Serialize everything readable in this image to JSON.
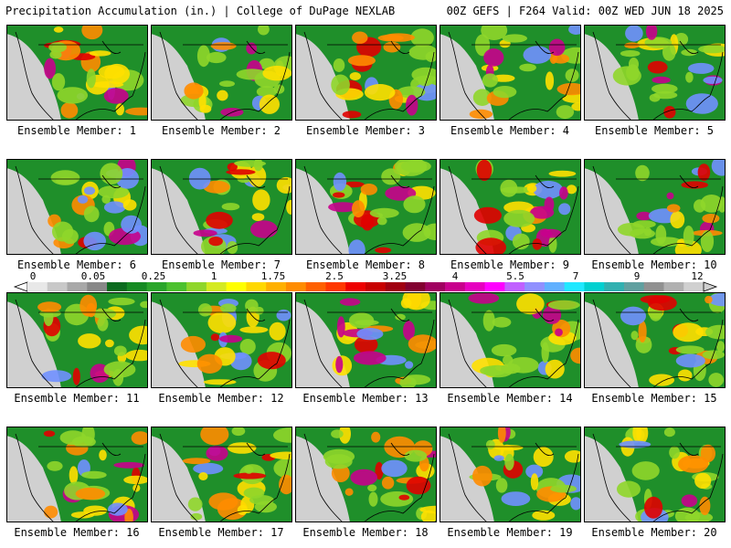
{
  "header": {
    "title": "Precipitation Accumulation (in.) | College of DuPage NEXLAB",
    "run_info": "00Z GEFS | F264 Valid: 00Z WED JUN 18 2025"
  },
  "panels": [
    {
      "label": "Ensemble Member: 1"
    },
    {
      "label": "Ensemble Member: 2"
    },
    {
      "label": "Ensemble Member: 3"
    },
    {
      "label": "Ensemble Member: 4"
    },
    {
      "label": "Ensemble Member: 5"
    },
    {
      "label": "Ensemble Member: 6"
    },
    {
      "label": "Ensemble Member: 7"
    },
    {
      "label": "Ensemble Member: 8"
    },
    {
      "label": "Ensemble Member: 9"
    },
    {
      "label": "Ensemble Member: 10"
    },
    {
      "label": "Ensemble Member: 11"
    },
    {
      "label": "Ensemble Member: 12"
    },
    {
      "label": "Ensemble Member: 13"
    },
    {
      "label": "Ensemble Member: 14"
    },
    {
      "label": "Ensemble Member: 15"
    },
    {
      "label": "Ensemble Member: 16"
    },
    {
      "label": "Ensemble Member: 17"
    },
    {
      "label": "Ensemble Member: 18"
    },
    {
      "label": "Ensemble Member: 19"
    },
    {
      "label": "Ensemble Member: 20"
    }
  ],
  "colorbar": {
    "tick_labels": [
      "0",
      "0.05",
      "0.25",
      "1",
      "1.75",
      "2.5",
      "3.25",
      "4",
      "5.5",
      "7",
      "9",
      "12"
    ],
    "colors": [
      "#e8e8e8",
      "#c8c8c8",
      "#a8a8a8",
      "#888888",
      "#0a6b1e",
      "#158a22",
      "#2aa52a",
      "#4cc12e",
      "#8fd62a",
      "#d4ea22",
      "#ffff00",
      "#ffd800",
      "#ffb000",
      "#ff8c00",
      "#ff6000",
      "#ff3800",
      "#ee0000",
      "#c80000",
      "#a00010",
      "#820030",
      "#a00060",
      "#c8008c",
      "#e600c0",
      "#ff00ff",
      "#c060ff",
      "#9090ff",
      "#60b0ff",
      "#20e8ff",
      "#00d0d0",
      "#30b0b0",
      "#60a0a0",
      "#909090",
      "#b0b0b0",
      "#d0d0d0"
    ]
  },
  "map_colors": {
    "low": "#d0d0d0",
    "green": "#1f8f2a",
    "lime": "#8fd62a",
    "yellow": "#ffe000",
    "orange": "#ff8c00",
    "red": "#e00000",
    "magenta": "#c8008c",
    "blue": "#7090ff",
    "border": "#000000"
  }
}
